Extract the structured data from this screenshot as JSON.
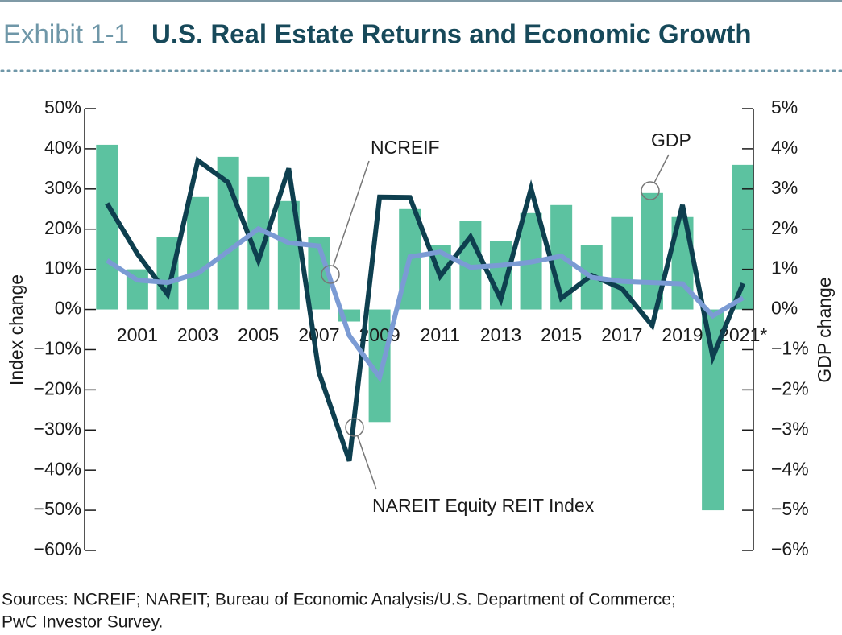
{
  "chart_data": {
    "type": "bar_line",
    "exhibit": "Exhibit 1-1",
    "title": "U.S. Real Estate Returns and Economic Growth",
    "ylabel": "Index change",
    "y2label": "GDP change",
    "source": [
      "Sources: NCREIF; NAREIT; Bureau of Economic Analysis/U.S. Department of Commerce;",
      "PwC Investor Survey."
    ],
    "categories": [
      null,
      "2001",
      null,
      "2003",
      null,
      "2005",
      null,
      "2007",
      null,
      "2009",
      null,
      "2011",
      null,
      "2013",
      null,
      "2015",
      null,
      "2017",
      null,
      "2019",
      null,
      "2021*"
    ],
    "series": [
      {
        "name": "GDP",
        "type": "bar",
        "axis": "y2",
        "color": "#5cc2a0",
        "values": [
          4.1,
          1.0,
          1.8,
          2.8,
          3.8,
          3.3,
          2.7,
          1.8,
          -0.3,
          -2.8,
          2.5,
          1.6,
          2.2,
          1.7,
          2.4,
          2.6,
          1.6,
          2.3,
          2.9,
          2.3,
          -5.0,
          3.6
        ]
      },
      {
        "name": "NAREIT Equity REIT Index",
        "type": "line",
        "color": "#0e3f4f",
        "values": [
          26.4,
          13.9,
          3.8,
          37.1,
          31.6,
          12.2,
          35.1,
          -15.7,
          -37.7,
          28.0,
          27.9,
          8.3,
          18.1,
          2.5,
          30.1,
          2.8,
          8.5,
          5.2,
          -4.0,
          26.0,
          -11.8,
          6.5
        ]
      },
      {
        "name": "NCREIF",
        "type": "line",
        "color": "#7b9bd4",
        "values": [
          12.2,
          7.3,
          6.7,
          9.0,
          14.5,
          20.1,
          16.6,
          15.8,
          -6.5,
          -16.9,
          13.1,
          14.3,
          10.5,
          11.0,
          11.8,
          13.3,
          8.0,
          7.0,
          6.7,
          6.4,
          -1.6,
          2.9
        ]
      }
    ],
    "ylim": [
      -60,
      50
    ],
    "yticks": [
      {
        "value": -60,
        "label": "−60%"
      },
      {
        "value": -50,
        "label": "−50%"
      },
      {
        "value": -40,
        "label": "−40%"
      },
      {
        "value": -30,
        "label": "−30%"
      },
      {
        "value": -20,
        "label": "−20%"
      },
      {
        "value": -10,
        "label": "−10%"
      },
      {
        "value": 0,
        "label": "0%"
      },
      {
        "value": 10,
        "label": "10%"
      },
      {
        "value": 20,
        "label": "20%"
      },
      {
        "value": 30,
        "label": "30%"
      },
      {
        "value": 40,
        "label": "40%"
      },
      {
        "value": 50,
        "label": "50%"
      }
    ],
    "y2lim": [
      -6,
      5
    ],
    "y2ticks": [
      {
        "value": -6,
        "label": "−6%"
      },
      {
        "value": -5,
        "label": "−5%"
      },
      {
        "value": -4,
        "label": "−4%"
      },
      {
        "value": -3,
        "label": "−3%"
      },
      {
        "value": -2,
        "label": "−2%"
      },
      {
        "value": -1,
        "label": "−1%"
      },
      {
        "value": 0,
        "label": "0%"
      },
      {
        "value": 1,
        "label": "1%"
      },
      {
        "value": 2,
        "label": "2%"
      },
      {
        "value": 3,
        "label": "3%"
      },
      {
        "value": 4,
        "label": "4%"
      },
      {
        "value": 5,
        "label": "5%"
      }
    ]
  }
}
